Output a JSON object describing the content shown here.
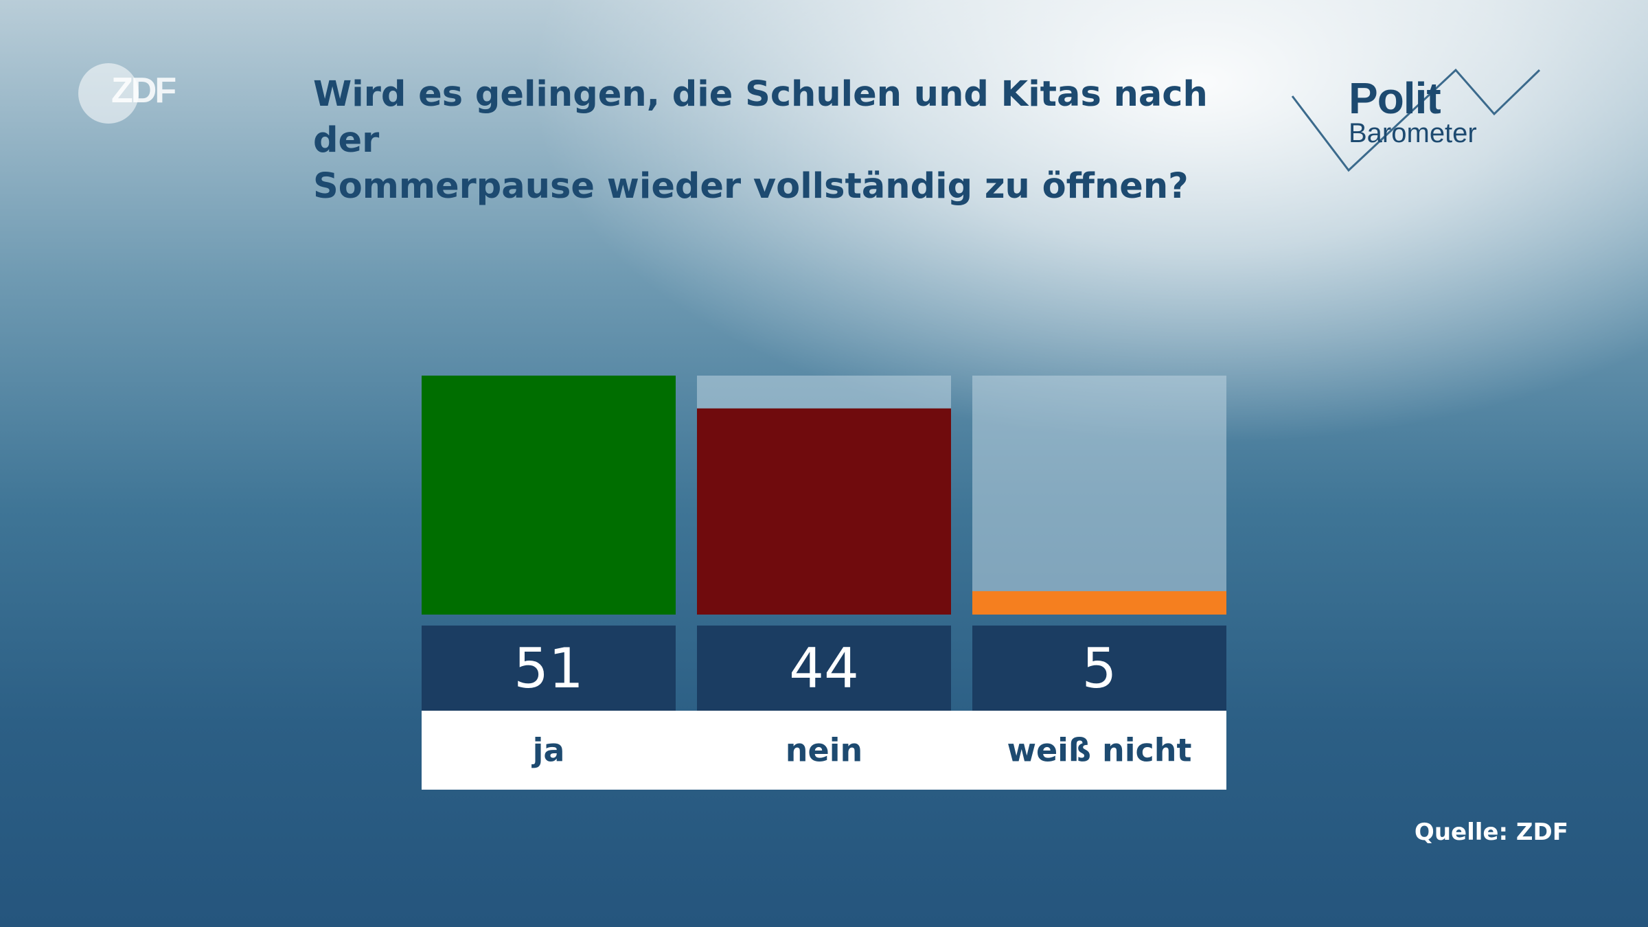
{
  "header": {
    "brand": "ZDF",
    "title_lines": [
      "Wird es gelingen, die Schulen und Kitas nach der",
      "Sommerpause wieder vollständig zu öffnen?"
    ],
    "politbarometer": {
      "line1": "Polit",
      "line2": "Barometer"
    }
  },
  "footer": {
    "source": "Quelle: ZDF"
  },
  "colors": {
    "ja": "#006e00",
    "nein": "#700b0d",
    "weiss_nicht": "#f57f1f",
    "track": "rgba(190,212,224,0.55)",
    "value_box": "#1b3d62",
    "label_text": "#1d4a70"
  },
  "chart_data": {
    "type": "bar",
    "categories": [
      "ja",
      "nein",
      "weiß nicht"
    ],
    "values": [
      51,
      44,
      5
    ],
    "ylim": [
      0,
      51
    ],
    "grid": false,
    "legend": "none"
  }
}
